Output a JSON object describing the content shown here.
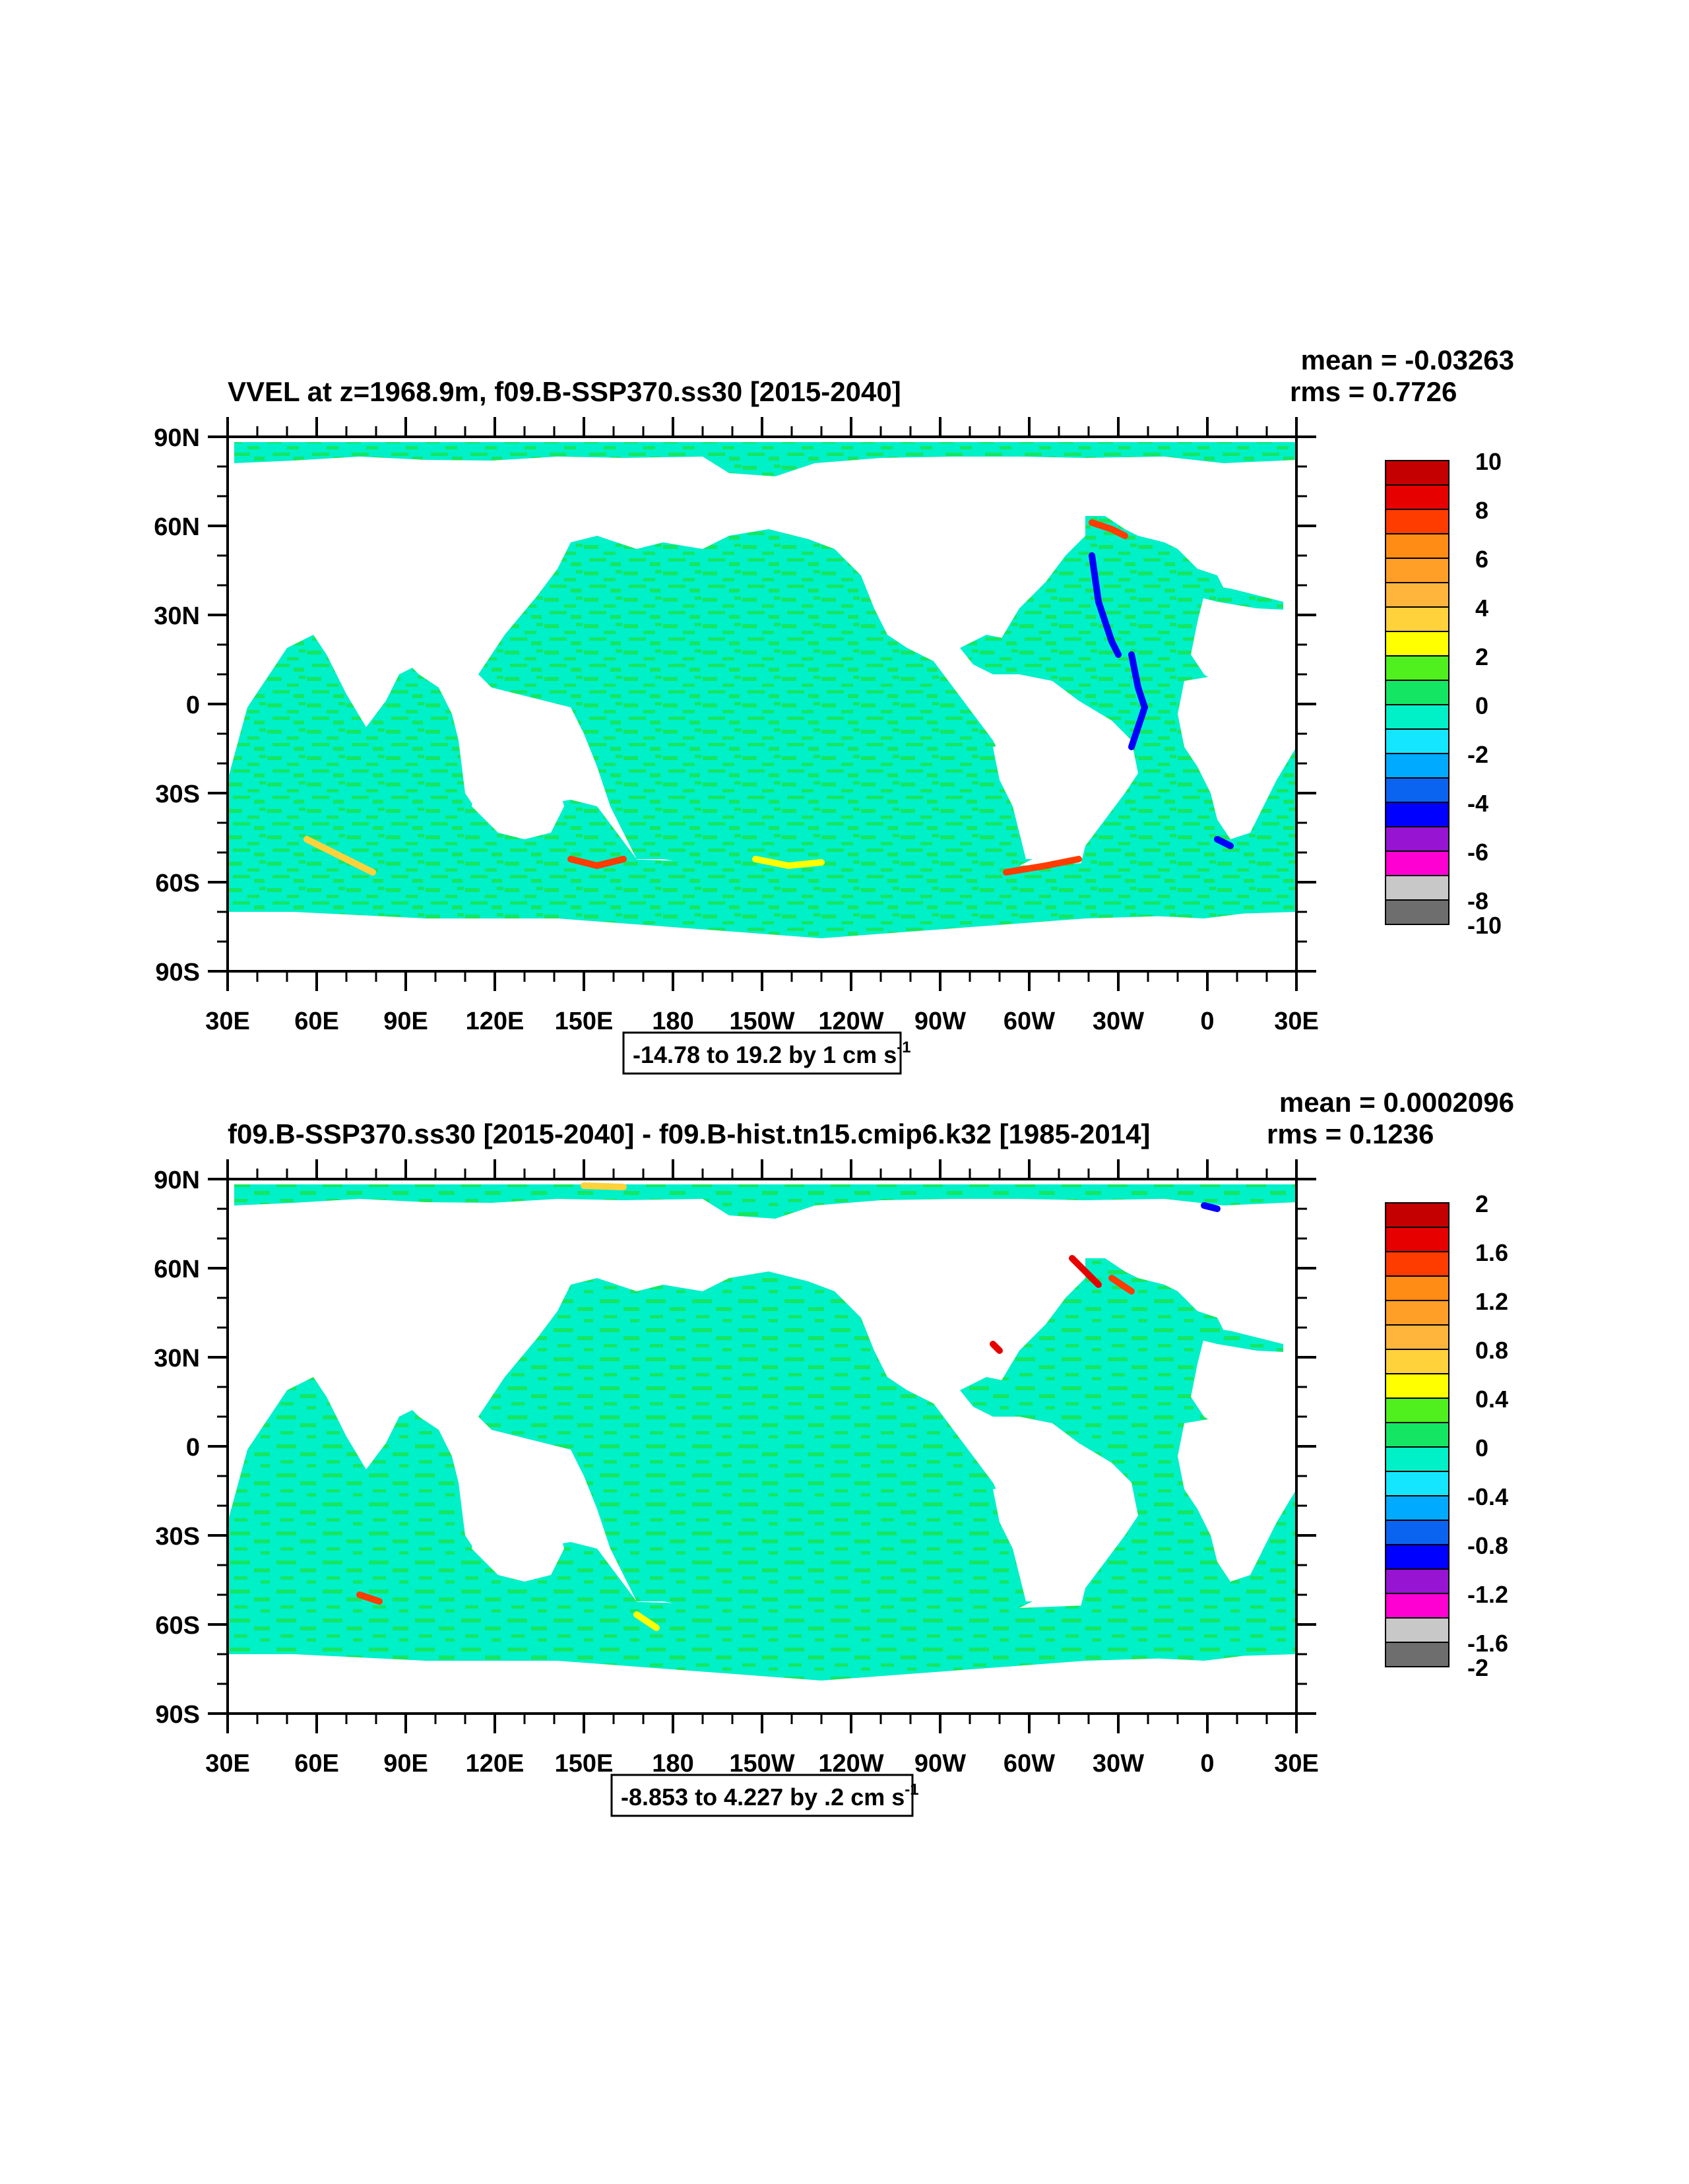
{
  "panels": [
    {
      "title": "VVEL at z=1968.9m, f09.B-SSP370.ss30 [2015-2040]",
      "mean": "mean = -0.03263",
      "rms": "rms = 0.7726",
      "range_text": "-14.78 to 19.2 by 1 cm s",
      "range_sup": "-1",
      "colorbar": {
        "labels": [
          "10",
          "8",
          "6",
          "4",
          "2",
          "0",
          "-2",
          "-4",
          "-6",
          "-8",
          "-10"
        ],
        "colors": [
          "#c40000",
          "#e60000",
          "#ff3c00",
          "#ff8c14",
          "#ff9f28",
          "#ffb43c",
          "#ffd23c",
          "#ffff00",
          "#50f01e",
          "#14e664",
          "#00f0c8",
          "#14e6ff",
          "#00aaff",
          "#0a64f0",
          "#0000ff",
          "#9614d2",
          "#ff00d2",
          "#c8c8c8",
          "#6e6e6e"
        ]
      }
    },
    {
      "title": "f09.B-SSP370.ss30 [2015-2040] - f09.B-hist.tn15.cmip6.k32 [1985-2014]",
      "mean": "mean = 0.0002096",
      "rms": "rms = 0.1236",
      "range_text": "-8.853 to 4.227 by .2 cm s",
      "range_sup": "-1",
      "colorbar": {
        "labels": [
          "2",
          "1.6",
          "1.2",
          "0.8",
          "0.4",
          "0",
          "-0.4",
          "-0.8",
          "-1.2",
          "-1.6",
          "-2"
        ],
        "colors": [
          "#c40000",
          "#e60000",
          "#ff3c00",
          "#ff8c14",
          "#ff9f28",
          "#ffb43c",
          "#ffd23c",
          "#ffff00",
          "#50f01e",
          "#14e664",
          "#00f0c8",
          "#14e6ff",
          "#00aaff",
          "#0a64f0",
          "#0000ff",
          "#9614d2",
          "#ff00d2",
          "#c8c8c8",
          "#6e6e6e"
        ]
      }
    }
  ],
  "lat_labels": [
    "90N",
    "60N",
    "30N",
    "0",
    "30S",
    "60S",
    "90S"
  ],
  "lon_labels": [
    "30E",
    "60E",
    "90E",
    "120E",
    "150E",
    "180",
    "150W",
    "120W",
    "90W",
    "60W",
    "30W",
    "0",
    "30E"
  ],
  "map_colors": {
    "ocean_green": "#14e664",
    "ocean_cyan": "#00f0c8",
    "land": "#ffffff"
  }
}
